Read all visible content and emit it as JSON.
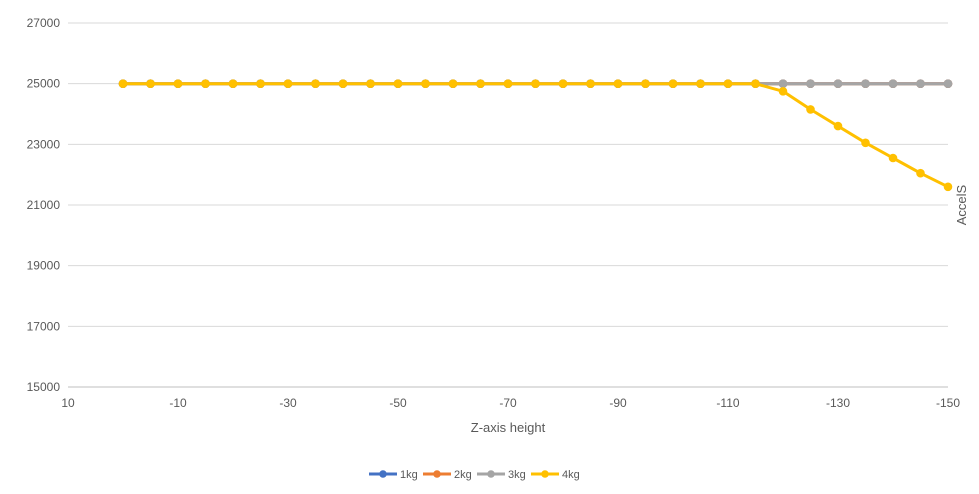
{
  "chart_data": {
    "type": "line",
    "title": "",
    "xlabel": "Z-axis height",
    "ylabel": "AccelS",
    "xlim": [
      10,
      -150
    ],
    "ylim": [
      15000,
      27000
    ],
    "x_ticks": [
      "10",
      "-10",
      "-30",
      "-50",
      "-70",
      "-90",
      "-110",
      "-130",
      "-150"
    ],
    "y_ticks": [
      "15000",
      "17000",
      "19000",
      "21000",
      "23000",
      "25000",
      "27000"
    ],
    "grid": true,
    "legend_position": "bottom",
    "x": [
      0,
      -5,
      -10,
      -15,
      -20,
      -25,
      -30,
      -35,
      -40,
      -45,
      -50,
      -55,
      -60,
      -65,
      -70,
      -75,
      -80,
      -85,
      -90,
      -95,
      -100,
      -105,
      -110,
      -115,
      -120,
      -125,
      -130,
      -135,
      -140,
      -145,
      -150
    ],
    "series": [
      {
        "name": "1kg",
        "color": "#4472C4",
        "values": [
          25000,
          25000,
          25000,
          25000,
          25000,
          25000,
          25000,
          25000,
          25000,
          25000,
          25000,
          25000,
          25000,
          25000,
          25000,
          25000,
          25000,
          25000,
          25000,
          25000,
          25000,
          25000,
          25000,
          25000,
          25000,
          25000,
          25000,
          25000,
          25000,
          25000,
          25000
        ]
      },
      {
        "name": "2kg",
        "color": "#ED7D31",
        "values": [
          25000,
          25000,
          25000,
          25000,
          25000,
          25000,
          25000,
          25000,
          25000,
          25000,
          25000,
          25000,
          25000,
          25000,
          25000,
          25000,
          25000,
          25000,
          25000,
          25000,
          25000,
          25000,
          25000,
          25000,
          25000,
          25000,
          25000,
          25000,
          25000,
          25000,
          25000
        ]
      },
      {
        "name": "3kg",
        "color": "#A5A5A5",
        "values": [
          25000,
          25000,
          25000,
          25000,
          25000,
          25000,
          25000,
          25000,
          25000,
          25000,
          25000,
          25000,
          25000,
          25000,
          25000,
          25000,
          25000,
          25000,
          25000,
          25000,
          25000,
          25000,
          25000,
          25000,
          25000,
          25000,
          25000,
          25000,
          25000,
          25000,
          25000
        ]
      },
      {
        "name": "4kg",
        "color": "#FFC000",
        "values": [
          25000,
          25000,
          25000,
          25000,
          25000,
          25000,
          25000,
          25000,
          25000,
          25000,
          25000,
          25000,
          25000,
          25000,
          25000,
          25000,
          25000,
          25000,
          25000,
          25000,
          25000,
          25000,
          25000,
          25000,
          24750,
          24150,
          23600,
          23050,
          22550,
          22050,
          21600
        ]
      }
    ]
  }
}
